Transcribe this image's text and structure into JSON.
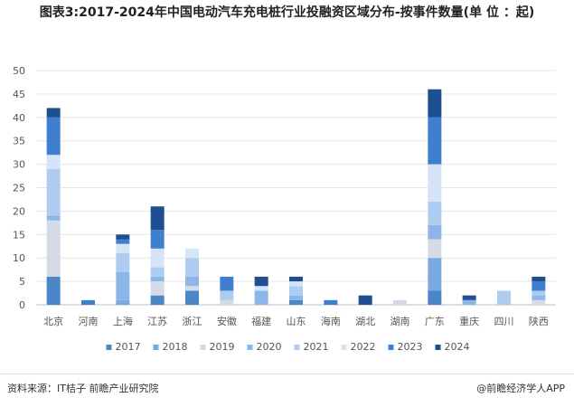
{
  "chart_data": {
    "type": "bar",
    "title": "图表3:2017-2024年中国电动汽车充电桩行业投融资区域分布-按事件数量(单 位 ：起)",
    "xlabel": "",
    "ylabel": "",
    "ylim": [
      0,
      50
    ],
    "yticks": [
      0,
      5,
      10,
      15,
      20,
      25,
      30,
      35,
      40,
      45,
      50
    ],
    "grid": true,
    "legend": "bottom",
    "categories": [
      "北京",
      "河南",
      "上海",
      "江苏",
      "浙江",
      "安徽",
      "福建",
      "山东",
      "海南",
      "湖北",
      "湖南",
      "广东",
      "重庆",
      "四川",
      "陕西"
    ],
    "series": [
      {
        "name": "2017",
        "color": "#4a86c8",
        "values": [
          6,
          0,
          0,
          2,
          3,
          0,
          0,
          1,
          0,
          0,
          0,
          3,
          0,
          0,
          0
        ]
      },
      {
        "name": "2018",
        "color": "#7aa9e0",
        "values": [
          0,
          0,
          1,
          0,
          0,
          0,
          0,
          0,
          0,
          0,
          0,
          7,
          0,
          0,
          0
        ]
      },
      {
        "name": "2019",
        "color": "#d4dbe6",
        "values": [
          12,
          0,
          0,
          3,
          1,
          1,
          0,
          0,
          0,
          0,
          1,
          4,
          0,
          0,
          1
        ]
      },
      {
        "name": "2020",
        "color": "#8db6e8",
        "values": [
          1,
          0,
          6,
          1,
          2,
          0,
          3,
          1,
          0,
          0,
          0,
          3,
          1,
          0,
          1
        ]
      },
      {
        "name": "2021",
        "color": "#aecbf0",
        "values": [
          10,
          0,
          4,
          2,
          4,
          2,
          0,
          2,
          0,
          0,
          0,
          5,
          0,
          3,
          1
        ]
      },
      {
        "name": "2022",
        "color": "#d5e5f7",
        "values": [
          3,
          0,
          2,
          4,
          2,
          0,
          1,
          1,
          0,
          0,
          0,
          8,
          0,
          0,
          0
        ]
      },
      {
        "name": "2023",
        "color": "#3f7fd0",
        "values": [
          8,
          1,
          1,
          4,
          0,
          3,
          0,
          0,
          1,
          0,
          0,
          10,
          0,
          0,
          2
        ]
      },
      {
        "name": "2024",
        "color": "#1f4e91",
        "values": [
          2,
          0,
          1,
          5,
          0,
          0,
          2,
          1,
          0,
          2,
          0,
          6,
          1,
          0,
          1
        ]
      }
    ]
  },
  "footer": {
    "source": "资料来源：IT桔子 前瞻产业研究院",
    "brand": "@前瞻经济学人APP"
  }
}
